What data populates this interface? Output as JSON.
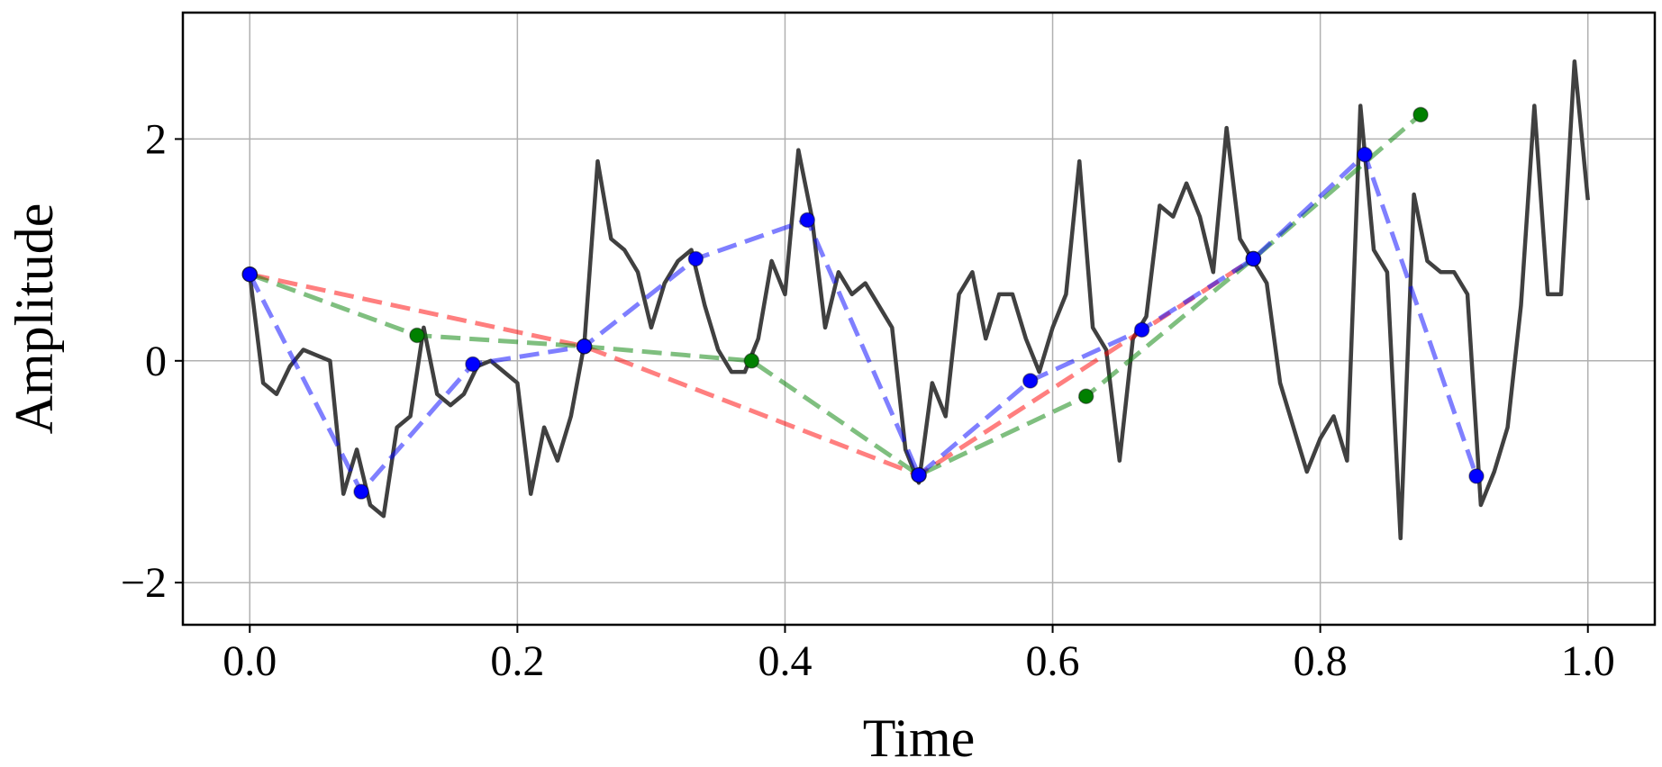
{
  "chart_data": {
    "type": "line",
    "x_label": "Time",
    "y_label": "Amplitude",
    "xlim": [
      -0.05,
      1.05
    ],
    "ylim": [
      -2.38,
      3.14
    ],
    "xticks": [
      {
        "value": 0,
        "label": "0.0"
      },
      0.2,
      0.4,
      0.6,
      0.8,
      {
        "value": 1,
        "label": "1.0"
      }
    ],
    "yticks": [
      {
        "value": -2,
        "label": "−2"
      },
      0,
      2
    ],
    "grid": true,
    "series": [
      {
        "color": "#404040",
        "linestyle": "solid",
        "marker": false,
        "x": [
          0,
          0.01,
          0.02,
          0.03,
          0.04,
          0.05,
          0.06,
          0.07,
          0.08,
          0.09,
          0.1,
          0.11,
          0.12,
          0.13,
          0.14,
          0.15,
          0.16,
          0.17,
          0.18,
          0.19,
          0.2,
          0.21,
          0.22,
          0.23,
          0.24,
          0.25,
          0.26,
          0.27,
          0.28,
          0.29,
          0.3,
          0.31,
          0.32,
          0.33,
          0.34,
          0.35,
          0.36,
          0.37,
          0.38,
          0.39,
          0.4,
          0.41,
          0.42,
          0.43,
          0.44,
          0.45,
          0.46,
          0.47,
          0.48,
          0.49,
          0.5,
          0.51,
          0.52,
          0.53,
          0.54,
          0.55,
          0.56,
          0.57,
          0.58,
          0.59,
          0.6,
          0.61,
          0.62,
          0.63,
          0.64,
          0.65,
          0.66,
          0.67,
          0.68,
          0.69,
          0.7,
          0.71,
          0.72,
          0.73,
          0.74,
          0.75,
          0.76,
          0.77,
          0.78,
          0.79,
          0.8,
          0.81,
          0.82,
          0.83,
          0.84,
          0.85,
          0.86,
          0.87,
          0.88,
          0.89,
          0.9,
          0.91,
          0.92,
          0.93,
          0.94,
          0.95,
          0.96,
          0.97,
          0.98,
          0.99,
          1
        ],
        "values": [
          0.78,
          -0.2,
          -0.3,
          -0.05,
          0.1,
          0.05,
          0.0,
          -1.2,
          -0.8,
          -1.3,
          -1.4,
          -0.6,
          -0.5,
          0.3,
          -0.3,
          -0.4,
          -0.3,
          -0.05,
          0.0,
          -0.1,
          -0.2,
          -1.2,
          -0.6,
          -0.9,
          -0.5,
          0.15,
          1.8,
          1.1,
          1.0,
          0.8,
          0.3,
          0.7,
          0.9,
          1.0,
          0.5,
          0.1,
          -0.1,
          -0.1,
          0.2,
          0.9,
          0.6,
          1.9,
          1.3,
          0.3,
          0.8,
          0.6,
          0.7,
          0.5,
          0.3,
          -0.8,
          -1.1,
          -0.2,
          -0.5,
          0.6,
          0.8,
          0.2,
          0.6,
          0.6,
          0.2,
          -0.1,
          0.3,
          0.6,
          1.8,
          0.3,
          0.1,
          -0.9,
          0.2,
          0.4,
          1.4,
          1.3,
          1.6,
          1.3,
          0.8,
          2.1,
          1.1,
          0.9,
          0.7,
          -0.2,
          -0.6,
          -1.0,
          -0.7,
          -0.5,
          -0.9,
          2.3,
          1.0,
          0.8,
          -1.6,
          1.5,
          0.9,
          0.8,
          0.8,
          0.6,
          -1.3,
          -1.0,
          -0.6,
          0.5,
          2.3,
          0.6,
          0.6,
          2.7,
          1.45
        ]
      },
      {
        "color": "#ff0000",
        "linestyle": "dashed",
        "marker": true,
        "x": [
          0,
          0.25,
          0.5,
          0.75
        ],
        "values": [
          0.78,
          0.13,
          -1.03,
          0.92
        ]
      },
      {
        "color": "#008000",
        "linestyle": "dashed",
        "marker": true,
        "x": [
          0,
          0.125,
          0.25,
          0.375,
          0.5,
          0.625,
          0.75,
          0.875
        ],
        "values": [
          0.78,
          0.23,
          0.13,
          0.0,
          -1.03,
          -0.32,
          0.92,
          2.22
        ]
      },
      {
        "color": "#0000ff",
        "linestyle": "dashed",
        "marker": true,
        "x": [
          0,
          0.0833,
          0.1667,
          0.25,
          0.3333,
          0.4167,
          0.5,
          0.5833,
          0.6667,
          0.75,
          0.8333,
          0.9167
        ],
        "values": [
          0.78,
          -1.18,
          -0.03,
          0.13,
          0.92,
          1.27,
          -1.03,
          -0.18,
          0.28,
          0.92,
          1.86,
          -1.04
        ]
      }
    ]
  }
}
